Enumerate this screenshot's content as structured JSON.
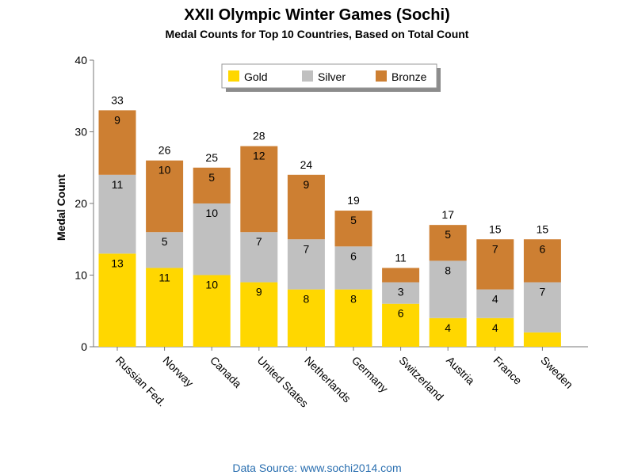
{
  "title": "XXII Olympic Winter Games (Sochi)",
  "subtitle": "Medal Counts for Top 10 Countries, Based on Total Count",
  "source": "Data Source: www.sochi2014.com",
  "colors": {
    "gold": "#FFD700",
    "silver": "#C0C0C0",
    "bronze": "#CD7F32"
  },
  "chart_data": {
    "type": "bar",
    "stacked": true,
    "categories": [
      "Russian Fed.",
      "Norway",
      "Canada",
      "United States",
      "Netherlands",
      "Germany",
      "Switzerland",
      "Austria",
      "France",
      "Sweden"
    ],
    "series": [
      {
        "name": "Gold",
        "color": "#FFD700",
        "values": [
          13,
          11,
          10,
          9,
          8,
          8,
          6,
          4,
          4,
          2
        ]
      },
      {
        "name": "Silver",
        "color": "#C0C0C0",
        "values": [
          11,
          5,
          10,
          7,
          7,
          6,
          3,
          8,
          4,
          7
        ]
      },
      {
        "name": "Bronze",
        "color": "#CD7F32",
        "values": [
          9,
          10,
          5,
          12,
          9,
          5,
          2,
          5,
          7,
          6
        ]
      }
    ],
    "totals": [
      33,
      26,
      25,
      28,
      24,
      19,
      11,
      17,
      15,
      15
    ],
    "segment_labels": [
      [
        "13",
        "11",
        "9"
      ],
      [
        "11",
        "5",
        "10"
      ],
      [
        "10",
        "10",
        "5"
      ],
      [
        "9",
        "7",
        "12"
      ],
      [
        "8",
        "7",
        "9"
      ],
      [
        "8",
        "6",
        "5"
      ],
      [
        "6",
        "3",
        ""
      ],
      [
        "4",
        "8",
        "5"
      ],
      [
        "4",
        "4",
        "7"
      ],
      [
        "",
        "7",
        "6"
      ]
    ],
    "ylabel": "Medal Count",
    "xlabel": "",
    "ylim": [
      0,
      40
    ],
    "yticks": [
      0,
      10,
      20,
      30,
      40
    ],
    "legend_position": "top"
  }
}
